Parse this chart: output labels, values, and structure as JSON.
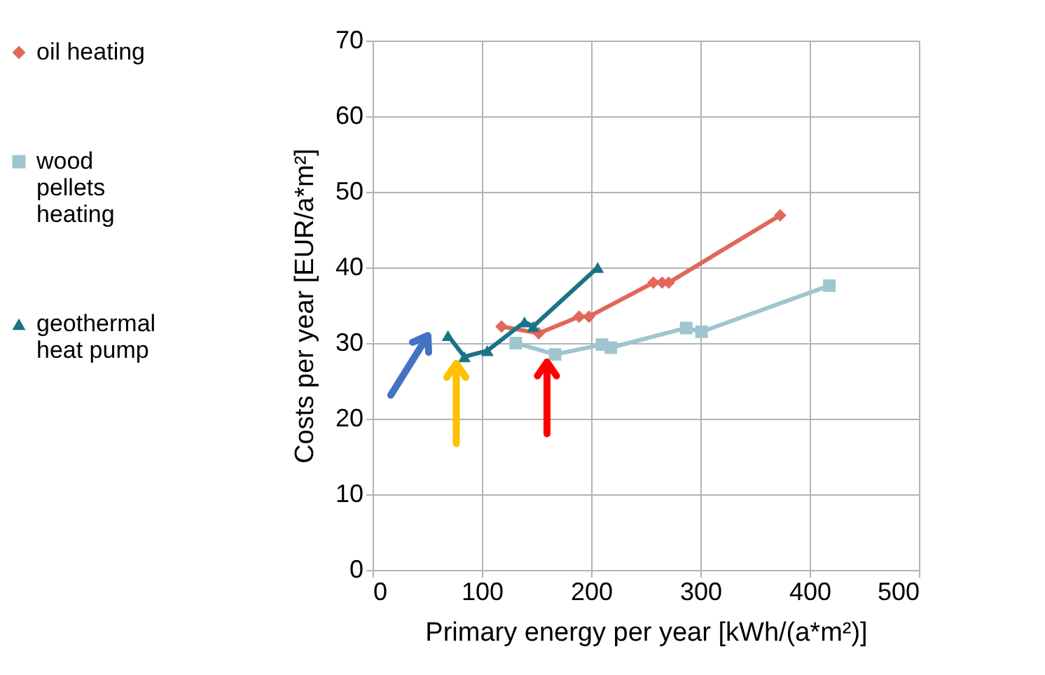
{
  "chart_data": {
    "type": "line",
    "xlabel": "Primary energy per year [kWh/(a*m²)]",
    "ylabel": "Costs per year [EUR/a*m²]",
    "xlim": [
      0,
      500
    ],
    "xticks": [
      0,
      100,
      200,
      300,
      400,
      500
    ],
    "ylim": [
      0,
      70
    ],
    "yticks": [
      0,
      10,
      20,
      30,
      40,
      50,
      60,
      70
    ],
    "grid": true,
    "legend": "left",
    "line_style": "solid",
    "series": [
      {
        "name": "oil heating",
        "color": "#e0675a",
        "marker": "diamond",
        "x": [
          118,
          152,
          189,
          198,
          257,
          265,
          271,
          373
        ],
        "values": [
          32.2,
          31.3,
          33.5,
          33.5,
          38,
          38,
          38,
          46.9
        ]
      },
      {
        "name": "wood pellets heating",
        "color": "#9fc5ce",
        "marker": "square",
        "x": [
          131,
          167,
          210,
          218,
          287,
          301,
          418
        ],
        "values": [
          30,
          28.5,
          29.8,
          29.4,
          32,
          31.5,
          37.6
        ]
      },
      {
        "name": "geothermal heat pump",
        "color": "#1a7386",
        "marker": "triangle",
        "x": [
          69,
          84,
          105,
          139,
          147,
          206
        ],
        "values": [
          31,
          28.2,
          29,
          32.8,
          32.2,
          40
        ]
      }
    ]
  }
}
